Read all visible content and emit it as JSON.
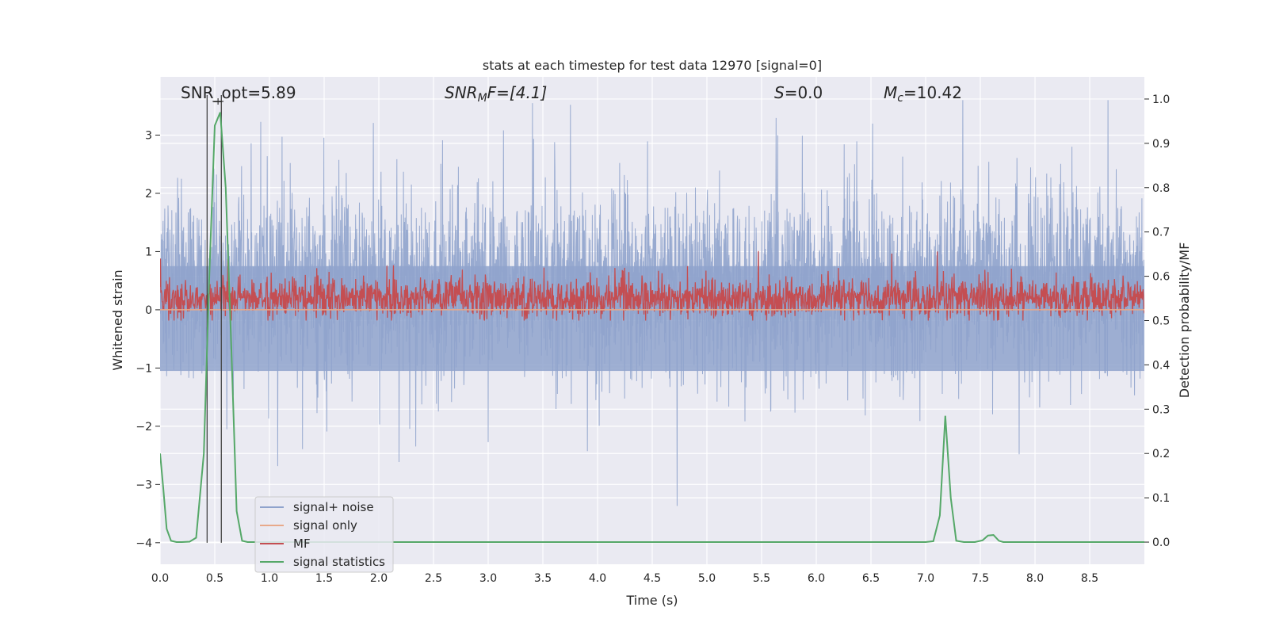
{
  "chart_data": {
    "type": "line",
    "title": "stats at each timestep for test data 12970 [signal=0]",
    "xlabel": "Time (s)",
    "ylabel_left": "Whitened strain",
    "ylabel_right": "Detection probability/MF",
    "xlim": [
      0.0,
      9.0
    ],
    "ylim_left": [
      -4.37,
      4.0
    ],
    "ylim_right": [
      -0.05,
      1.05
    ],
    "x_ticks": [
      "0.0",
      "0.5",
      "1.0",
      "1.5",
      "2.0",
      "2.5",
      "3.0",
      "3.5",
      "4.0",
      "4.5",
      "5.0",
      "5.5",
      "6.0",
      "6.5",
      "7.0",
      "7.5",
      "8.0",
      "8.5"
    ],
    "y_ticks_left": [
      "−4",
      "−3",
      "−2",
      "−1",
      "0",
      "1",
      "2",
      "3"
    ],
    "y_ticks_right": [
      "0.0",
      "0.1",
      "0.2",
      "0.3",
      "0.4",
      "0.5",
      "0.6",
      "0.7",
      "0.8",
      "0.9",
      "1.0"
    ],
    "annotations": {
      "snr_opt": "SNR_opt=5.89",
      "snr_mf_base": "SNR",
      "snr_mf_sub": "M",
      "snr_mf_rest": "F=[4.1]",
      "s_base": "S",
      "s_rest": "=0.0",
      "mc_base": "M",
      "mc_sub": "c",
      "mc_rest": "=10.42"
    },
    "vertical_markers_s": [
      0.43,
      0.56
    ],
    "legend": {
      "placement": "lower-left",
      "entries": [
        "signal+ noise",
        "signal only",
        "MF",
        "signal statistics"
      ]
    },
    "series": [
      {
        "name": "signal+ noise",
        "color": "#8fa3cc",
        "description": "whitened strain noise, roughly within [-2, 3]"
      },
      {
        "name": "signal only",
        "color": "#e8a98a",
        "values_constant": 0.0
      },
      {
        "name": "MF",
        "color": "#c44e52",
        "description": "matched-filter output around 0.55 on right axis"
      },
      {
        "name": "signal statistics",
        "color": "#55a868",
        "x": [
          0.0,
          0.03,
          0.06,
          0.1,
          0.15,
          0.2,
          0.27,
          0.33,
          0.4,
          0.45,
          0.5,
          0.55,
          0.6,
          0.65,
          0.7,
          0.75,
          0.8,
          0.9,
          1.0,
          2.0,
          3.0,
          4.0,
          5.0,
          5.5,
          6.0,
          6.5,
          7.0,
          7.07,
          7.13,
          7.18,
          7.23,
          7.28,
          7.35,
          7.45,
          7.52,
          7.57,
          7.62,
          7.67,
          7.71,
          7.76,
          7.85,
          8.0,
          9.0
        ],
        "values": [
          0.2,
          0.12,
          0.03,
          0.003,
          0.0,
          0.0,
          0.001,
          0.01,
          0.2,
          0.6,
          0.94,
          0.97,
          0.8,
          0.45,
          0.07,
          0.003,
          0.0,
          0.0,
          0.0,
          0.0,
          0.0,
          0.0,
          0.0,
          0.0,
          0.0,
          0.0,
          0.0,
          0.002,
          0.06,
          0.285,
          0.1,
          0.003,
          0.0,
          0.0,
          0.004,
          0.015,
          0.016,
          0.003,
          0.0,
          0.0,
          0.0,
          0.0,
          0.0
        ]
      }
    ]
  },
  "colors": {
    "plot_bg": "#eaeaf2",
    "grid": "#ffffff",
    "noise": "#8fa3cc",
    "signal_only": "#e8a98a",
    "mf": "#c44e52",
    "stat": "#55a868",
    "marker": "#444444"
  }
}
